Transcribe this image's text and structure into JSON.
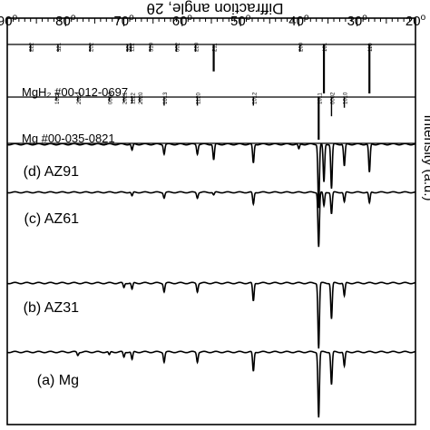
{
  "chart_data": {
    "type": "line",
    "xlabel": "Diffraction angle, 2θ",
    "ylabel": "Intensity (a.u.)",
    "xlim": [
      20,
      90
    ],
    "x_ticks": [
      "20",
      "30",
      "40",
      "50",
      "60",
      "70",
      "80",
      "90"
    ],
    "x_tick_values": [
      20,
      30,
      40,
      50,
      60,
      70,
      80,
      90
    ],
    "tick_suffix": "o",
    "references": [
      {
        "name": "MgH₂ #00-012-0697",
        "lines": [
          {
            "x": 27.9,
            "label": "110",
            "h": 1.0
          },
          {
            "x": 35.7,
            "label": "101",
            "h": 1.0
          },
          {
            "x": 39.8,
            "label": "200",
            "h": 0.15
          },
          {
            "x": 54.6,
            "label": "211",
            "h": 0.55
          },
          {
            "x": 57.7,
            "label": "220",
            "h": 0.15
          },
          {
            "x": 61.0,
            "label": "002",
            "h": 0.15
          },
          {
            "x": 65.5,
            "label": "310",
            "h": 0.15
          },
          {
            "x": 68.8,
            "label": "112",
            "h": 0.15
          },
          {
            "x": 69.4,
            "label": "301",
            "h": 0.15
          },
          {
            "x": 75.8,
            "label": "202",
            "h": 0.15
          },
          {
            "x": 81.3,
            "label": "321",
            "h": 0.15
          },
          {
            "x": 86.0,
            "label": "222",
            "h": 0.15
          }
        ]
      },
      {
        "name": "Mg #00-035-0821",
        "lines": [
          {
            "x": 32.2,
            "label": "1010",
            "h": 0.25
          },
          {
            "x": 34.4,
            "label": "0002",
            "h": 0.45
          },
          {
            "x": 36.6,
            "label": "1011",
            "h": 1.0
          },
          {
            "x": 47.8,
            "label": "1012",
            "h": 0.2
          },
          {
            "x": 57.4,
            "label": "1120",
            "h": 0.2
          },
          {
            "x": 63.1,
            "label": "1013",
            "h": 0.2
          },
          {
            "x": 67.3,
            "label": "2020",
            "h": 0.12
          },
          {
            "x": 68.6,
            "label": "1122",
            "h": 0.15
          },
          {
            "x": 70.0,
            "label": "2021",
            "h": 0.12
          },
          {
            "x": 72.5,
            "label": "0004",
            "h": 0.1
          },
          {
            "x": 77.9,
            "label": "2022",
            "h": 0.1
          },
          {
            "x": 81.6,
            "label": "1014",
            "h": 0.08
          }
        ]
      }
    ],
    "series": [
      {
        "name": "(a) Mg",
        "peaks": [
          {
            "x": 32.2,
            "h": 0.22
          },
          {
            "x": 34.4,
            "h": 0.5
          },
          {
            "x": 36.6,
            "h": 1.0
          },
          {
            "x": 47.8,
            "h": 0.3
          },
          {
            "x": 57.4,
            "h": 0.15
          },
          {
            "x": 63.1,
            "h": 0.15
          },
          {
            "x": 68.6,
            "h": 0.12
          },
          {
            "x": 70.0,
            "h": 0.08
          },
          {
            "x": 72.5,
            "h": 0.05
          },
          {
            "x": 77.9,
            "h": 0.05
          }
        ]
      },
      {
        "name": "(b) AZ31",
        "peaks": [
          {
            "x": 32.2,
            "h": 0.2
          },
          {
            "x": 34.4,
            "h": 0.55
          },
          {
            "x": 36.6,
            "h": 1.0
          },
          {
            "x": 47.8,
            "h": 0.28
          },
          {
            "x": 57.4,
            "h": 0.13
          },
          {
            "x": 63.1,
            "h": 0.13
          },
          {
            "x": 68.6,
            "h": 0.1
          },
          {
            "x": 70.0,
            "h": 0.07
          }
        ]
      },
      {
        "name": "(c) AZ61",
        "peaks": [
          {
            "x": 27.9,
            "h": 0.2
          },
          {
            "x": 32.2,
            "h": 0.18
          },
          {
            "x": 34.4,
            "h": 0.4
          },
          {
            "x": 35.7,
            "h": 0.25
          },
          {
            "x": 36.6,
            "h": 1.0
          },
          {
            "x": 47.8,
            "h": 0.22
          },
          {
            "x": 54.6,
            "h": 0.05
          },
          {
            "x": 57.4,
            "h": 0.1
          },
          {
            "x": 63.1,
            "h": 0.1
          },
          {
            "x": 68.6,
            "h": 0.07
          }
        ]
      },
      {
        "name": "(d) AZ91",
        "peaks": [
          {
            "x": 27.9,
            "h": 0.45
          },
          {
            "x": 32.2,
            "h": 0.35
          },
          {
            "x": 34.4,
            "h": 0.7
          },
          {
            "x": 35.7,
            "h": 0.6
          },
          {
            "x": 36.6,
            "h": 1.0
          },
          {
            "x": 40.0,
            "h": 0.08
          },
          {
            "x": 47.8,
            "h": 0.3
          },
          {
            "x": 54.6,
            "h": 0.25
          },
          {
            "x": 57.4,
            "h": 0.15
          },
          {
            "x": 63.1,
            "h": 0.15
          },
          {
            "x": 68.6,
            "h": 0.1
          }
        ]
      }
    ],
    "grid": false,
    "legend": "none"
  }
}
